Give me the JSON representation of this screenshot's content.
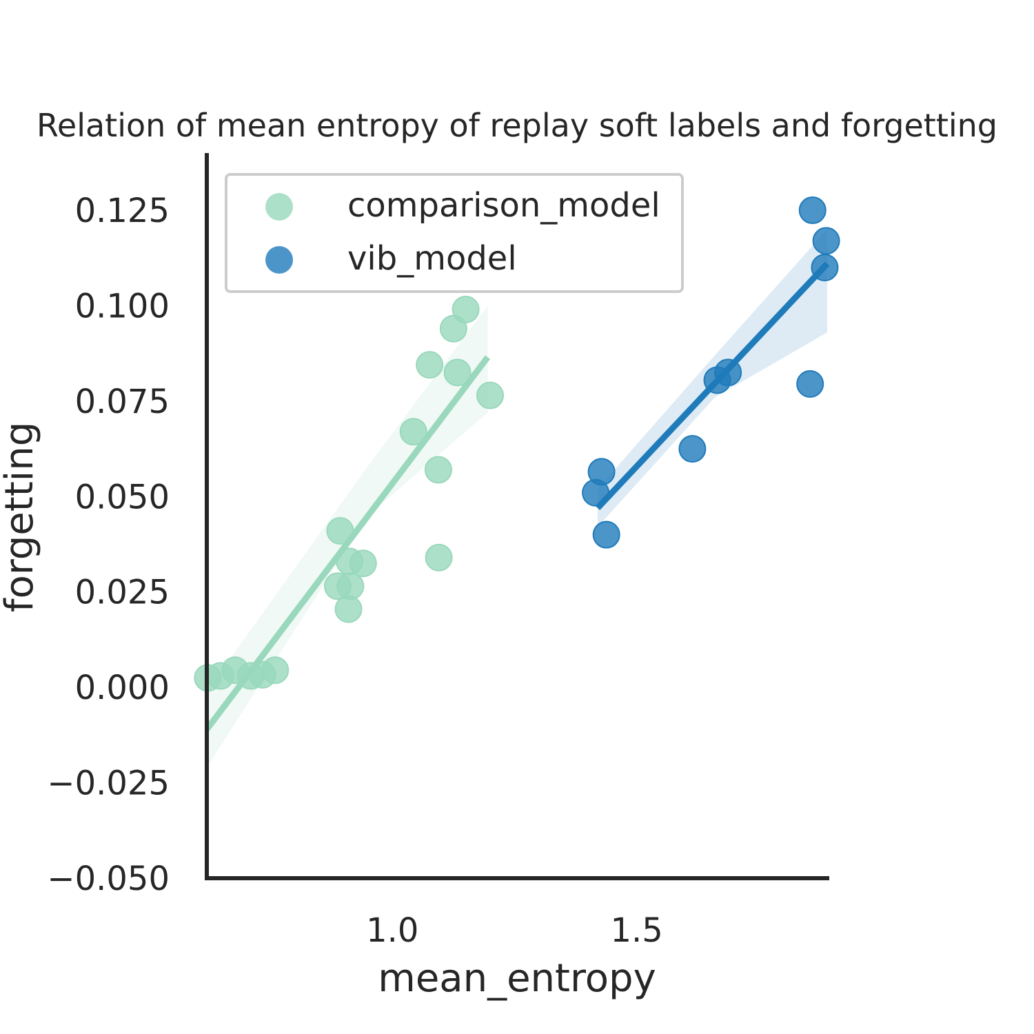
{
  "chart_data": {
    "type": "scatter",
    "title": "Relation of mean entropy of replay soft labels and forgetting",
    "xlabel": "mean_entropy",
    "ylabel": "forgetting",
    "xlim": [
      0.62,
      1.89
    ],
    "ylim": [
      -0.05,
      0.14
    ],
    "xticks": [
      1.0,
      1.5
    ],
    "xtick_labels": [
      "1.0",
      "1.5"
    ],
    "yticks": [
      -0.05,
      -0.025,
      0.0,
      0.025,
      0.05,
      0.075,
      0.1,
      0.125
    ],
    "ytick_labels": [
      "−0.050",
      "−0.025",
      "0.000",
      "0.025",
      "0.050",
      "0.075",
      "0.100",
      "0.125"
    ],
    "grid": false,
    "legend_position": "top-left",
    "series": [
      {
        "name": "comparison_model",
        "color": "#99d8bc",
        "points": [
          [
            0.622,
            0.0025
          ],
          [
            0.648,
            0.003
          ],
          [
            0.678,
            0.0045
          ],
          [
            0.71,
            0.003
          ],
          [
            0.734,
            0.0033
          ],
          [
            0.76,
            0.0045
          ],
          [
            0.893,
            0.041
          ],
          [
            0.888,
            0.0265
          ],
          [
            0.912,
            0.033
          ],
          [
            0.94,
            0.0325
          ],
          [
            0.914,
            0.0265
          ],
          [
            0.91,
            0.0205
          ],
          [
            1.043,
            0.067
          ],
          [
            1.076,
            0.0845
          ],
          [
            1.094,
            0.057
          ],
          [
            1.125,
            0.094
          ],
          [
            1.15,
            0.099
          ],
          [
            1.133,
            0.0825
          ],
          [
            1.2,
            0.0765
          ],
          [
            1.095,
            0.034
          ]
        ],
        "fit": {
          "x": [
            0.62,
            1.195
          ],
          "y": [
            -0.011,
            0.0865
          ]
        },
        "ci_upper": [
          -0.001,
          0.058,
          0.1
        ],
        "ci_lower": [
          -0.021,
          0.045,
          0.072
        ],
        "ci_x": [
          0.62,
          0.95,
          1.195
        ]
      },
      {
        "name": "vib_model",
        "color": "#1f7bba",
        "points": [
          [
            1.428,
            0.0565
          ],
          [
            1.416,
            0.051
          ],
          [
            1.438,
            0.04
          ],
          [
            1.614,
            0.0625
          ],
          [
            1.665,
            0.0805
          ],
          [
            1.687,
            0.0825
          ],
          [
            1.855,
            0.0795
          ],
          [
            1.86,
            0.125
          ],
          [
            1.888,
            0.117
          ],
          [
            1.885,
            0.11
          ]
        ],
        "fit": {
          "x": [
            1.42,
            1.89
          ],
          "y": [
            0.047,
            0.111
          ]
        },
        "ci_upper": [
          0.052,
          0.087,
          0.12
        ],
        "ci_lower": [
          0.042,
          0.076,
          0.093
        ],
        "ci_x": [
          1.42,
          1.66,
          1.89
        ]
      }
    ]
  }
}
